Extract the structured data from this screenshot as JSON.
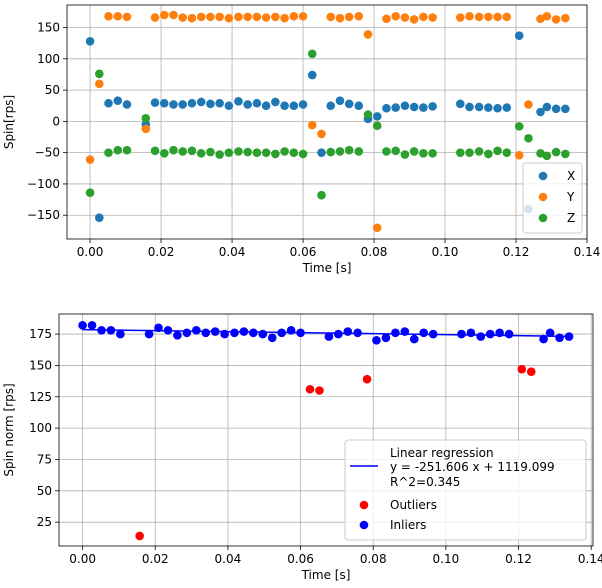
{
  "chart_data": [
    {
      "type": "scatter",
      "xlabel": "Time [s]",
      "ylabel": "Spin[rps]",
      "xlim": [
        -0.0065,
        0.14
      ],
      "ylim": [
        -188,
        186
      ],
      "xticks": [
        0.0,
        0.02,
        0.04,
        0.06,
        0.08,
        0.1,
        0.12,
        0.14
      ],
      "xtick_labels": [
        "0.00",
        "0.02",
        "0.04",
        "0.06",
        "0.08",
        "0.10",
        "0.12",
        "0.14"
      ],
      "yticks": [
        -150,
        -100,
        -50,
        0,
        50,
        100,
        150
      ],
      "ytick_labels": [
        "−150",
        "−100",
        "−50",
        "0",
        "50",
        "100",
        "150"
      ],
      "grid": true,
      "legend_position": "bottom-right",
      "series": [
        {
          "name": "X",
          "color": "#1f77b4",
          "points": [
            [
              0.0,
              128
            ],
            [
              0.0026,
              -154
            ],
            [
              0.0052,
              29
            ],
            [
              0.0078,
              33
            ],
            [
              0.0104,
              27
            ],
            [
              0.0157,
              -5
            ],
            [
              0.0183,
              30
            ],
            [
              0.0209,
              29
            ],
            [
              0.0235,
              27
            ],
            [
              0.0261,
              27
            ],
            [
              0.0287,
              29
            ],
            [
              0.0313,
              31
            ],
            [
              0.0339,
              28
            ],
            [
              0.0365,
              29
            ],
            [
              0.0391,
              25
            ],
            [
              0.0418,
              32
            ],
            [
              0.0444,
              27
            ],
            [
              0.047,
              29
            ],
            [
              0.0496,
              25
            ],
            [
              0.0522,
              31
            ],
            [
              0.0548,
              25
            ],
            [
              0.0574,
              25
            ],
            [
              0.06,
              27
            ],
            [
              0.0626,
              74
            ],
            [
              0.0652,
              -50
            ],
            [
              0.0678,
              25
            ],
            [
              0.0704,
              33
            ],
            [
              0.073,
              28
            ],
            [
              0.0757,
              25
            ],
            [
              0.0783,
              4
            ],
            [
              0.0809,
              8
            ],
            [
              0.0835,
              21
            ],
            [
              0.0861,
              22
            ],
            [
              0.0887,
              25
            ],
            [
              0.0913,
              23
            ],
            [
              0.0939,
              22
            ],
            [
              0.0965,
              24
            ],
            [
              0.1043,
              28
            ],
            [
              0.1069,
              23
            ],
            [
              0.1096,
              23
            ],
            [
              0.1122,
              22
            ],
            [
              0.1148,
              21
            ],
            [
              0.1174,
              22
            ],
            [
              0.1209,
              137
            ],
            [
              0.1235,
              -140
            ],
            [
              0.1269,
              15
            ],
            [
              0.1287,
              23
            ],
            [
              0.1313,
              20
            ],
            [
              0.1339,
              20
            ]
          ]
        },
        {
          "name": "Y",
          "color": "#ff7f0e",
          "points": [
            [
              0.0,
              -61
            ],
            [
              0.0026,
              60
            ],
            [
              0.0052,
              168
            ],
            [
              0.0078,
              168
            ],
            [
              0.0104,
              167
            ],
            [
              0.0157,
              -12
            ],
            [
              0.0183,
              166
            ],
            [
              0.0209,
              170
            ],
            [
              0.0235,
              170
            ],
            [
              0.0261,
              166
            ],
            [
              0.0287,
              165
            ],
            [
              0.0313,
              167
            ],
            [
              0.0339,
              167
            ],
            [
              0.0365,
              167
            ],
            [
              0.0391,
              165
            ],
            [
              0.0418,
              167
            ],
            [
              0.0444,
              167
            ],
            [
              0.047,
              167
            ],
            [
              0.0496,
              166
            ],
            [
              0.0522,
              167
            ],
            [
              0.0548,
              165
            ],
            [
              0.0574,
              168
            ],
            [
              0.06,
              168
            ],
            [
              0.0626,
              -6
            ],
            [
              0.0652,
              -20
            ],
            [
              0.0678,
              167
            ],
            [
              0.0704,
              165
            ],
            [
              0.073,
              167
            ],
            [
              0.0757,
              168
            ],
            [
              0.0783,
              139
            ],
            [
              0.0809,
              -170
            ],
            [
              0.0835,
              164
            ],
            [
              0.0861,
              168
            ],
            [
              0.0887,
              166
            ],
            [
              0.0913,
              163
            ],
            [
              0.0939,
              167
            ],
            [
              0.0965,
              166
            ],
            [
              0.1043,
              166
            ],
            [
              0.1069,
              168
            ],
            [
              0.1096,
              167
            ],
            [
              0.1122,
              167
            ],
            [
              0.1148,
              167
            ],
            [
              0.1174,
              167
            ],
            [
              0.1209,
              -54
            ],
            [
              0.1235,
              27
            ],
            [
              0.1269,
              164
            ],
            [
              0.1287,
              168
            ],
            [
              0.1313,
              163
            ],
            [
              0.1339,
              165
            ]
          ]
        },
        {
          "name": "Z",
          "color": "#2ca02c",
          "points": [
            [
              0.0,
              -114
            ],
            [
              0.0026,
              76
            ],
            [
              0.0052,
              -50
            ],
            [
              0.0078,
              -46
            ],
            [
              0.0104,
              -46
            ],
            [
              0.0157,
              5
            ],
            [
              0.0183,
              -47
            ],
            [
              0.0209,
              -51
            ],
            [
              0.0235,
              -46
            ],
            [
              0.0261,
              -48
            ],
            [
              0.0287,
              -47
            ],
            [
              0.0313,
              -51
            ],
            [
              0.0339,
              -49
            ],
            [
              0.0365,
              -53
            ],
            [
              0.0391,
              -50
            ],
            [
              0.0418,
              -48
            ],
            [
              0.0444,
              -49
            ],
            [
              0.047,
              -50
            ],
            [
              0.0496,
              -50
            ],
            [
              0.0522,
              -52
            ],
            [
              0.0548,
              -48
            ],
            [
              0.0574,
              -50
            ],
            [
              0.06,
              -52
            ],
            [
              0.0626,
              108
            ],
            [
              0.0652,
              -118
            ],
            [
              0.0678,
              -49
            ],
            [
              0.0704,
              -48
            ],
            [
              0.073,
              -46
            ],
            [
              0.0757,
              -48
            ],
            [
              0.0783,
              11
            ],
            [
              0.0809,
              -7
            ],
            [
              0.0835,
              -48
            ],
            [
              0.0861,
              -47
            ],
            [
              0.0887,
              -53
            ],
            [
              0.0913,
              -48
            ],
            [
              0.0939,
              -51
            ],
            [
              0.0965,
              -51
            ],
            [
              0.1043,
              -50
            ],
            [
              0.1069,
              -50
            ],
            [
              0.1096,
              -48
            ],
            [
              0.1122,
              -52
            ],
            [
              0.1148,
              -47
            ],
            [
              0.1174,
              -50
            ],
            [
              0.1209,
              -8
            ],
            [
              0.1235,
              -27
            ],
            [
              0.1269,
              -51
            ],
            [
              0.1287,
              -55
            ],
            [
              0.1313,
              -49
            ],
            [
              0.1339,
              -52
            ]
          ]
        }
      ]
    },
    {
      "type": "scatter",
      "xlabel": "Time [s]",
      "ylabel": "Spin norm [rps]",
      "xlim": [
        -0.0065,
        0.1405
      ],
      "ylim": [
        6,
        191
      ],
      "xticks": [
        0.0,
        0.02,
        0.04,
        0.06,
        0.08,
        0.1,
        0.12,
        0.14
      ],
      "xtick_labels": [
        "0.00",
        "0.02",
        "0.04",
        "0.06",
        "0.08",
        "0.10",
        "0.12",
        "0.14"
      ],
      "yticks": [
        25,
        50,
        75,
        100,
        125,
        150,
        175
      ],
      "ytick_labels": [
        "25",
        "50",
        "75",
        "100",
        "125",
        "150",
        "175"
      ],
      "grid": true,
      "legend_position": "bottom-right",
      "regression": {
        "name": "Linear regression",
        "equation": "y = -251.606 x + 1119.099",
        "r2": "R^2=0.345",
        "color": "#0000ff",
        "x": [
          0.0,
          0.1339
        ],
        "y": [
          178.5,
          173.2
        ]
      },
      "series": [
        {
          "name": "Outliers",
          "color": "#ff0000",
          "points": [
            [
              0.0157,
              14
            ],
            [
              0.0626,
              131
            ],
            [
              0.0652,
              130
            ],
            [
              0.0783,
              139
            ],
            [
              0.1209,
              147
            ],
            [
              0.1235,
              145
            ]
          ]
        },
        {
          "name": "Inliers",
          "color": "#0000ff",
          "points": [
            [
              0.0,
              182
            ],
            [
              0.0026,
              182
            ],
            [
              0.0052,
              178
            ],
            [
              0.0078,
              178
            ],
            [
              0.0104,
              175
            ],
            [
              0.0183,
              175
            ],
            [
              0.0209,
              180
            ],
            [
              0.0235,
              178
            ],
            [
              0.0261,
              174
            ],
            [
              0.0287,
              176
            ],
            [
              0.0313,
              178
            ],
            [
              0.0339,
              176
            ],
            [
              0.0365,
              177
            ],
            [
              0.0391,
              175
            ],
            [
              0.0418,
              176
            ],
            [
              0.0444,
              177
            ],
            [
              0.047,
              176
            ],
            [
              0.0496,
              175
            ],
            [
              0.0522,
              172
            ],
            [
              0.0548,
              176
            ],
            [
              0.0574,
              178
            ],
            [
              0.06,
              176
            ],
            [
              0.0678,
              173
            ],
            [
              0.0704,
              175
            ],
            [
              0.073,
              177
            ],
            [
              0.0757,
              176
            ],
            [
              0.0809,
              170
            ],
            [
              0.0835,
              172
            ],
            [
              0.0861,
              176
            ],
            [
              0.0887,
              177
            ],
            [
              0.0913,
              171
            ],
            [
              0.0939,
              176
            ],
            [
              0.0965,
              175
            ],
            [
              0.1043,
              175
            ],
            [
              0.1069,
              176
            ],
            [
              0.1096,
              173
            ],
            [
              0.1122,
              175
            ],
            [
              0.1148,
              176
            ],
            [
              0.1174,
              175
            ],
            [
              0.1269,
              171
            ],
            [
              0.1287,
              176
            ],
            [
              0.1313,
              172
            ],
            [
              0.1339,
              173
            ]
          ]
        }
      ]
    }
  ]
}
